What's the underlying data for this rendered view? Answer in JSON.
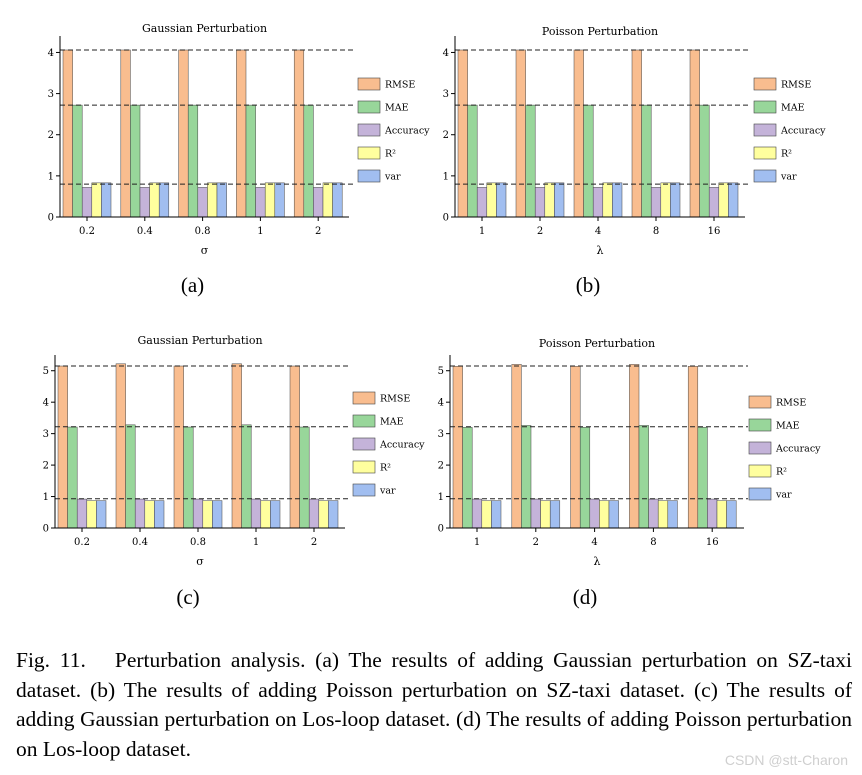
{
  "chart_data": [
    {
      "panel_label": "(a)",
      "type": "bar",
      "title": "Gaussian Perturbation",
      "xlabel": "σ",
      "ylabel": "",
      "categories": [
        "0.2",
        "0.4",
        "0.8",
        "1",
        "2"
      ],
      "ylim": [
        0,
        4.4
      ],
      "yticks": [
        "0",
        "1",
        "2",
        "3",
        "4"
      ],
      "reference_lines": [
        4.06,
        2.72,
        0.8
      ],
      "series": [
        {
          "name": "RMSE",
          "values": [
            4.06,
            4.06,
            4.06,
            4.06,
            4.06
          ]
        },
        {
          "name": "MAE",
          "values": [
            2.72,
            2.72,
            2.72,
            2.72,
            2.72
          ]
        },
        {
          "name": "Accuracy",
          "values": [
            0.72,
            0.72,
            0.72,
            0.72,
            0.72
          ]
        },
        {
          "name": "R²",
          "values": [
            0.83,
            0.83,
            0.83,
            0.83,
            0.83
          ]
        },
        {
          "name": "var",
          "values": [
            0.83,
            0.83,
            0.83,
            0.83,
            0.83
          ]
        }
      ]
    },
    {
      "panel_label": "(b)",
      "type": "bar",
      "title": "Poisson Perturbation",
      "xlabel": "λ",
      "ylabel": "",
      "categories": [
        "1",
        "2",
        "4",
        "8",
        "16"
      ],
      "ylim": [
        0,
        4.4
      ],
      "yticks": [
        "0",
        "1",
        "2",
        "3",
        "4"
      ],
      "reference_lines": [
        4.06,
        2.72,
        0.8
      ],
      "series": [
        {
          "name": "RMSE",
          "values": [
            4.06,
            4.06,
            4.06,
            4.06,
            4.06
          ]
        },
        {
          "name": "MAE",
          "values": [
            2.72,
            2.72,
            2.72,
            2.72,
            2.72
          ]
        },
        {
          "name": "Accuracy",
          "values": [
            0.72,
            0.72,
            0.72,
            0.72,
            0.72
          ]
        },
        {
          "name": "R²",
          "values": [
            0.83,
            0.83,
            0.83,
            0.83,
            0.83
          ]
        },
        {
          "name": "var",
          "values": [
            0.83,
            0.83,
            0.83,
            0.83,
            0.83
          ]
        }
      ]
    },
    {
      "panel_label": "(c)",
      "type": "bar",
      "title": "Gaussian Perturbation",
      "xlabel": "σ",
      "ylabel": "",
      "categories": [
        "0.2",
        "0.4",
        "0.8",
        "1",
        "2"
      ],
      "ylim": [
        0,
        5.5
      ],
      "yticks": [
        "0",
        "1",
        "2",
        "3",
        "4",
        "5"
      ],
      "reference_lines": [
        5.15,
        3.22,
        0.93
      ],
      "series": [
        {
          "name": "RMSE",
          "values": [
            5.15,
            5.22,
            5.15,
            5.22,
            5.15
          ]
        },
        {
          "name": "MAE",
          "values": [
            3.21,
            3.28,
            3.21,
            3.28,
            3.21
          ]
        },
        {
          "name": "Accuracy",
          "values": [
            0.92,
            0.92,
            0.92,
            0.92,
            0.92
          ]
        },
        {
          "name": "R²",
          "values": [
            0.87,
            0.87,
            0.87,
            0.87,
            0.87
          ]
        },
        {
          "name": "var",
          "values": [
            0.87,
            0.87,
            0.87,
            0.87,
            0.87
          ]
        }
      ]
    },
    {
      "panel_label": "(d)",
      "type": "bar",
      "title": "Poisson Perturbation",
      "xlabel": "λ",
      "ylabel": "",
      "categories": [
        "1",
        "2",
        "4",
        "8",
        "16"
      ],
      "ylim": [
        0,
        5.5
      ],
      "yticks": [
        "0",
        "1",
        "2",
        "3",
        "4",
        "5"
      ],
      "reference_lines": [
        5.15,
        3.22,
        0.93
      ],
      "series": [
        {
          "name": "RMSE",
          "values": [
            5.14,
            5.2,
            5.14,
            5.2,
            5.14
          ]
        },
        {
          "name": "MAE",
          "values": [
            3.2,
            3.26,
            3.2,
            3.26,
            3.2
          ]
        },
        {
          "name": "Accuracy",
          "values": [
            0.92,
            0.92,
            0.92,
            0.92,
            0.92
          ]
        },
        {
          "name": "R²",
          "values": [
            0.87,
            0.87,
            0.87,
            0.87,
            0.87
          ]
        },
        {
          "name": "var",
          "values": [
            0.87,
            0.87,
            0.87,
            0.87,
            0.87
          ]
        }
      ]
    }
  ],
  "series_colors": {
    "RMSE": "#f9bd8f",
    "MAE": "#98d69a",
    "Accuracy": "#c4b3d9",
    "R²": "#ffff9e",
    "var": "#a1bef0"
  },
  "caption": {
    "figure_label": "Fig. 11.",
    "text": "Perturbation analysis. (a) The results of adding Gaussian perturbation on SZ-taxi dataset. (b) The results of adding Poisson perturbation on SZ-taxi dataset. (c) The results of adding Gaussian perturbation on Los-loop dataset. (d) The results of adding Poisson perturbation on Los-loop dataset."
  },
  "watermark": "CSDN @stt-Charon"
}
